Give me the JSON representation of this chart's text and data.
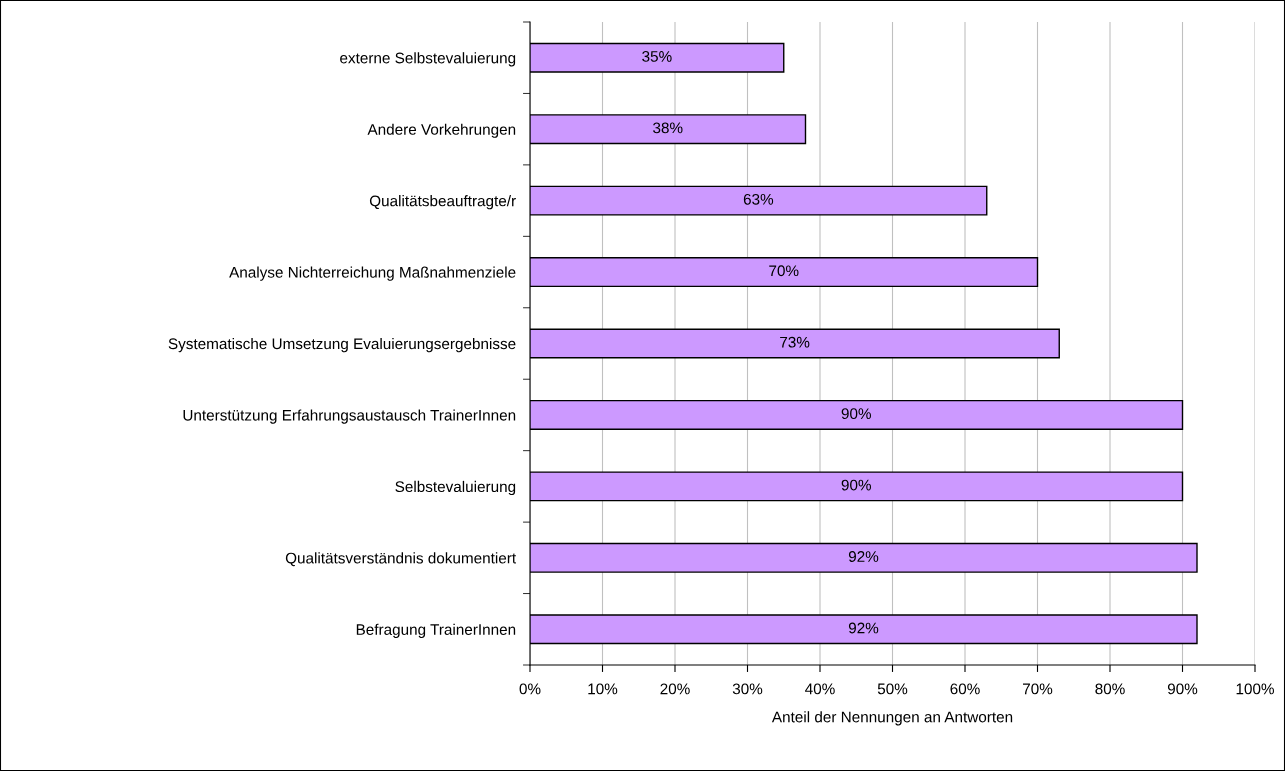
{
  "chart_data": {
    "type": "bar",
    "orientation": "horizontal",
    "xlabel": "Anteil der Nennungen an Antworten",
    "categories": [
      "externe Selbstevaluierung",
      "Andere Vorkehrungen",
      "Qualitätsbeauftragte/r",
      "Analyse Nichterreichung Maßnahmenziele",
      "Systematische Umsetzung Evaluierungsergebnisse",
      "Unterstützung Erfahrungsaustausch TrainerInnen",
      "Selbstevaluierung",
      "Qualitätsverständnis dokumentiert",
      "Befragung TrainerInnen"
    ],
    "values": [
      35,
      38,
      63,
      70,
      73,
      90,
      90,
      92,
      92
    ],
    "value_labels": [
      "35%",
      "38%",
      "63%",
      "70%",
      "73%",
      "90%",
      "90%",
      "92%",
      "92%"
    ],
    "color": "#cc99ff",
    "xlim": [
      0,
      100
    ],
    "xticks": [
      {
        "value": 0,
        "label": "0%"
      },
      {
        "value": 10,
        "label": "10%"
      },
      {
        "value": 20,
        "label": "20%"
      },
      {
        "value": 30,
        "label": "30%"
      },
      {
        "value": 40,
        "label": "40%"
      },
      {
        "value": 50,
        "label": "50%"
      },
      {
        "value": 60,
        "label": "60%"
      },
      {
        "value": 70,
        "label": "70%"
      },
      {
        "value": 80,
        "label": "80%"
      },
      {
        "value": 90,
        "label": "90%"
      },
      {
        "value": 100,
        "label": "100%"
      }
    ],
    "grid": "x"
  }
}
